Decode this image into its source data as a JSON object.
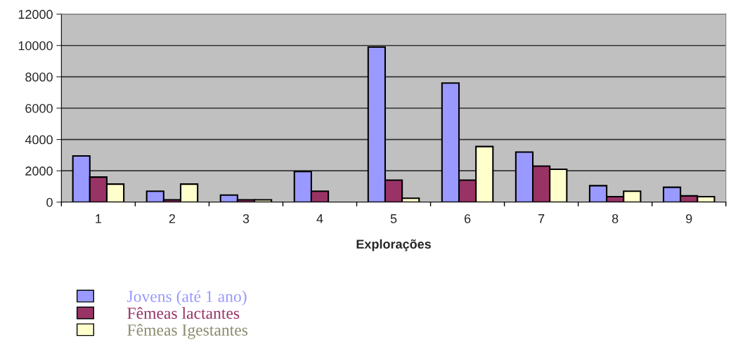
{
  "chart_data": {
    "type": "bar",
    "xlabel": "Explorações",
    "categories": [
      "1",
      "2",
      "3",
      "4",
      "5",
      "6",
      "7",
      "8",
      "9"
    ],
    "series": [
      {
        "name": "Jovens (até 1 ano)",
        "color": "#9999ff",
        "values": [
          2950,
          700,
          450,
          1950,
          9900,
          7600,
          3200,
          1050,
          950
        ]
      },
      {
        "name": "Fêmeas lactantes",
        "color": "#993366",
        "values": [
          1600,
          150,
          150,
          700,
          1400,
          1400,
          2300,
          350,
          400
        ]
      },
      {
        "name": "Fêmeas Igestantes",
        "color": "#ffffcc",
        "values": [
          1150,
          1150,
          150,
          null,
          250,
          3550,
          2100,
          700,
          350
        ]
      }
    ],
    "ylim": [
      0,
      12000
    ],
    "yticks": [
      0,
      2000,
      4000,
      6000,
      8000,
      10000,
      12000
    ],
    "grid": "y",
    "legend": "bottom"
  }
}
